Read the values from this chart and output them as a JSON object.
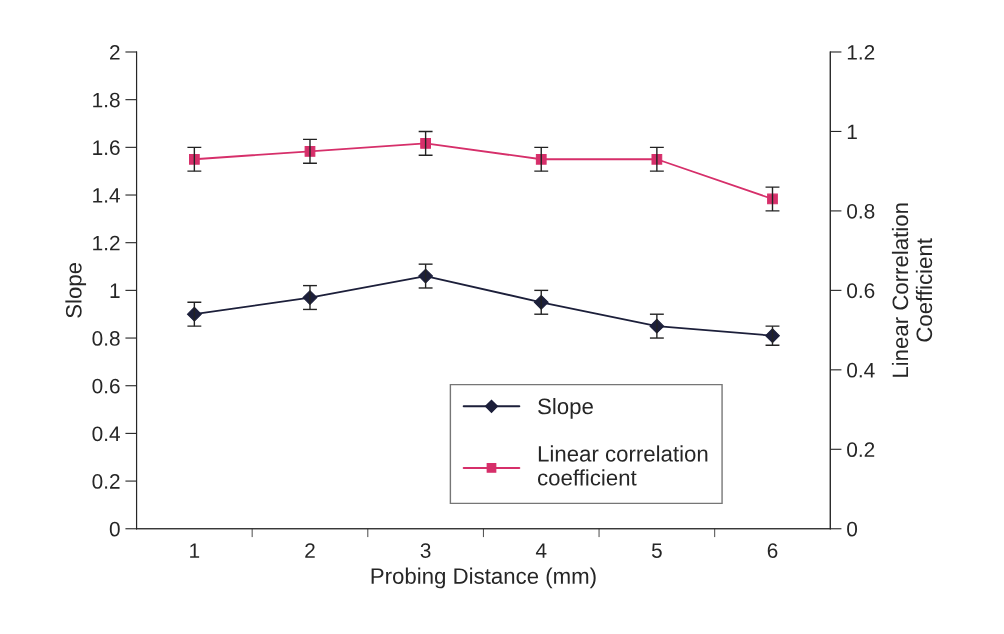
{
  "chart_data": {
    "type": "line",
    "xlabel": "Probing Distance (mm)",
    "ylabel": "Slope",
    "y2label": "Linear Correlation\nCoefficient",
    "categories": [
      "1",
      "2",
      "3",
      "4",
      "5",
      "6"
    ],
    "series": [
      {
        "name": "Slope",
        "color": "#1c1f3a",
        "values": [
          0.9,
          0.97,
          1.06,
          0.95,
          0.85,
          0.81
        ],
        "errors": [
          0.05,
          0.05,
          0.05,
          0.05,
          0.05,
          0.04
        ],
        "marker": "diamond"
      },
      {
        "name": "Linear correlation\ncoefficient",
        "color": "#d62f6a",
        "values": [
          0.93,
          0.95,
          0.97,
          0.93,
          0.93,
          0.83
        ],
        "errors": [
          0.03,
          0.03,
          0.03,
          0.03,
          0.03,
          0.03
        ],
        "marker": "square",
        "axis": "y2"
      }
    ],
    "ylim": [
      0,
      2
    ],
    "yticks": [
      0,
      0.2,
      0.4,
      0.6,
      0.8,
      1,
      1.2,
      1.4,
      1.6,
      1.8,
      2
    ],
    "y2lim": [
      0,
      1.2
    ],
    "y2ticks": [
      0,
      0.2,
      0.4,
      0.6,
      0.8,
      1,
      1.2
    ],
    "grid": false,
    "legend": "bottom right",
    "line_style": "solid"
  }
}
